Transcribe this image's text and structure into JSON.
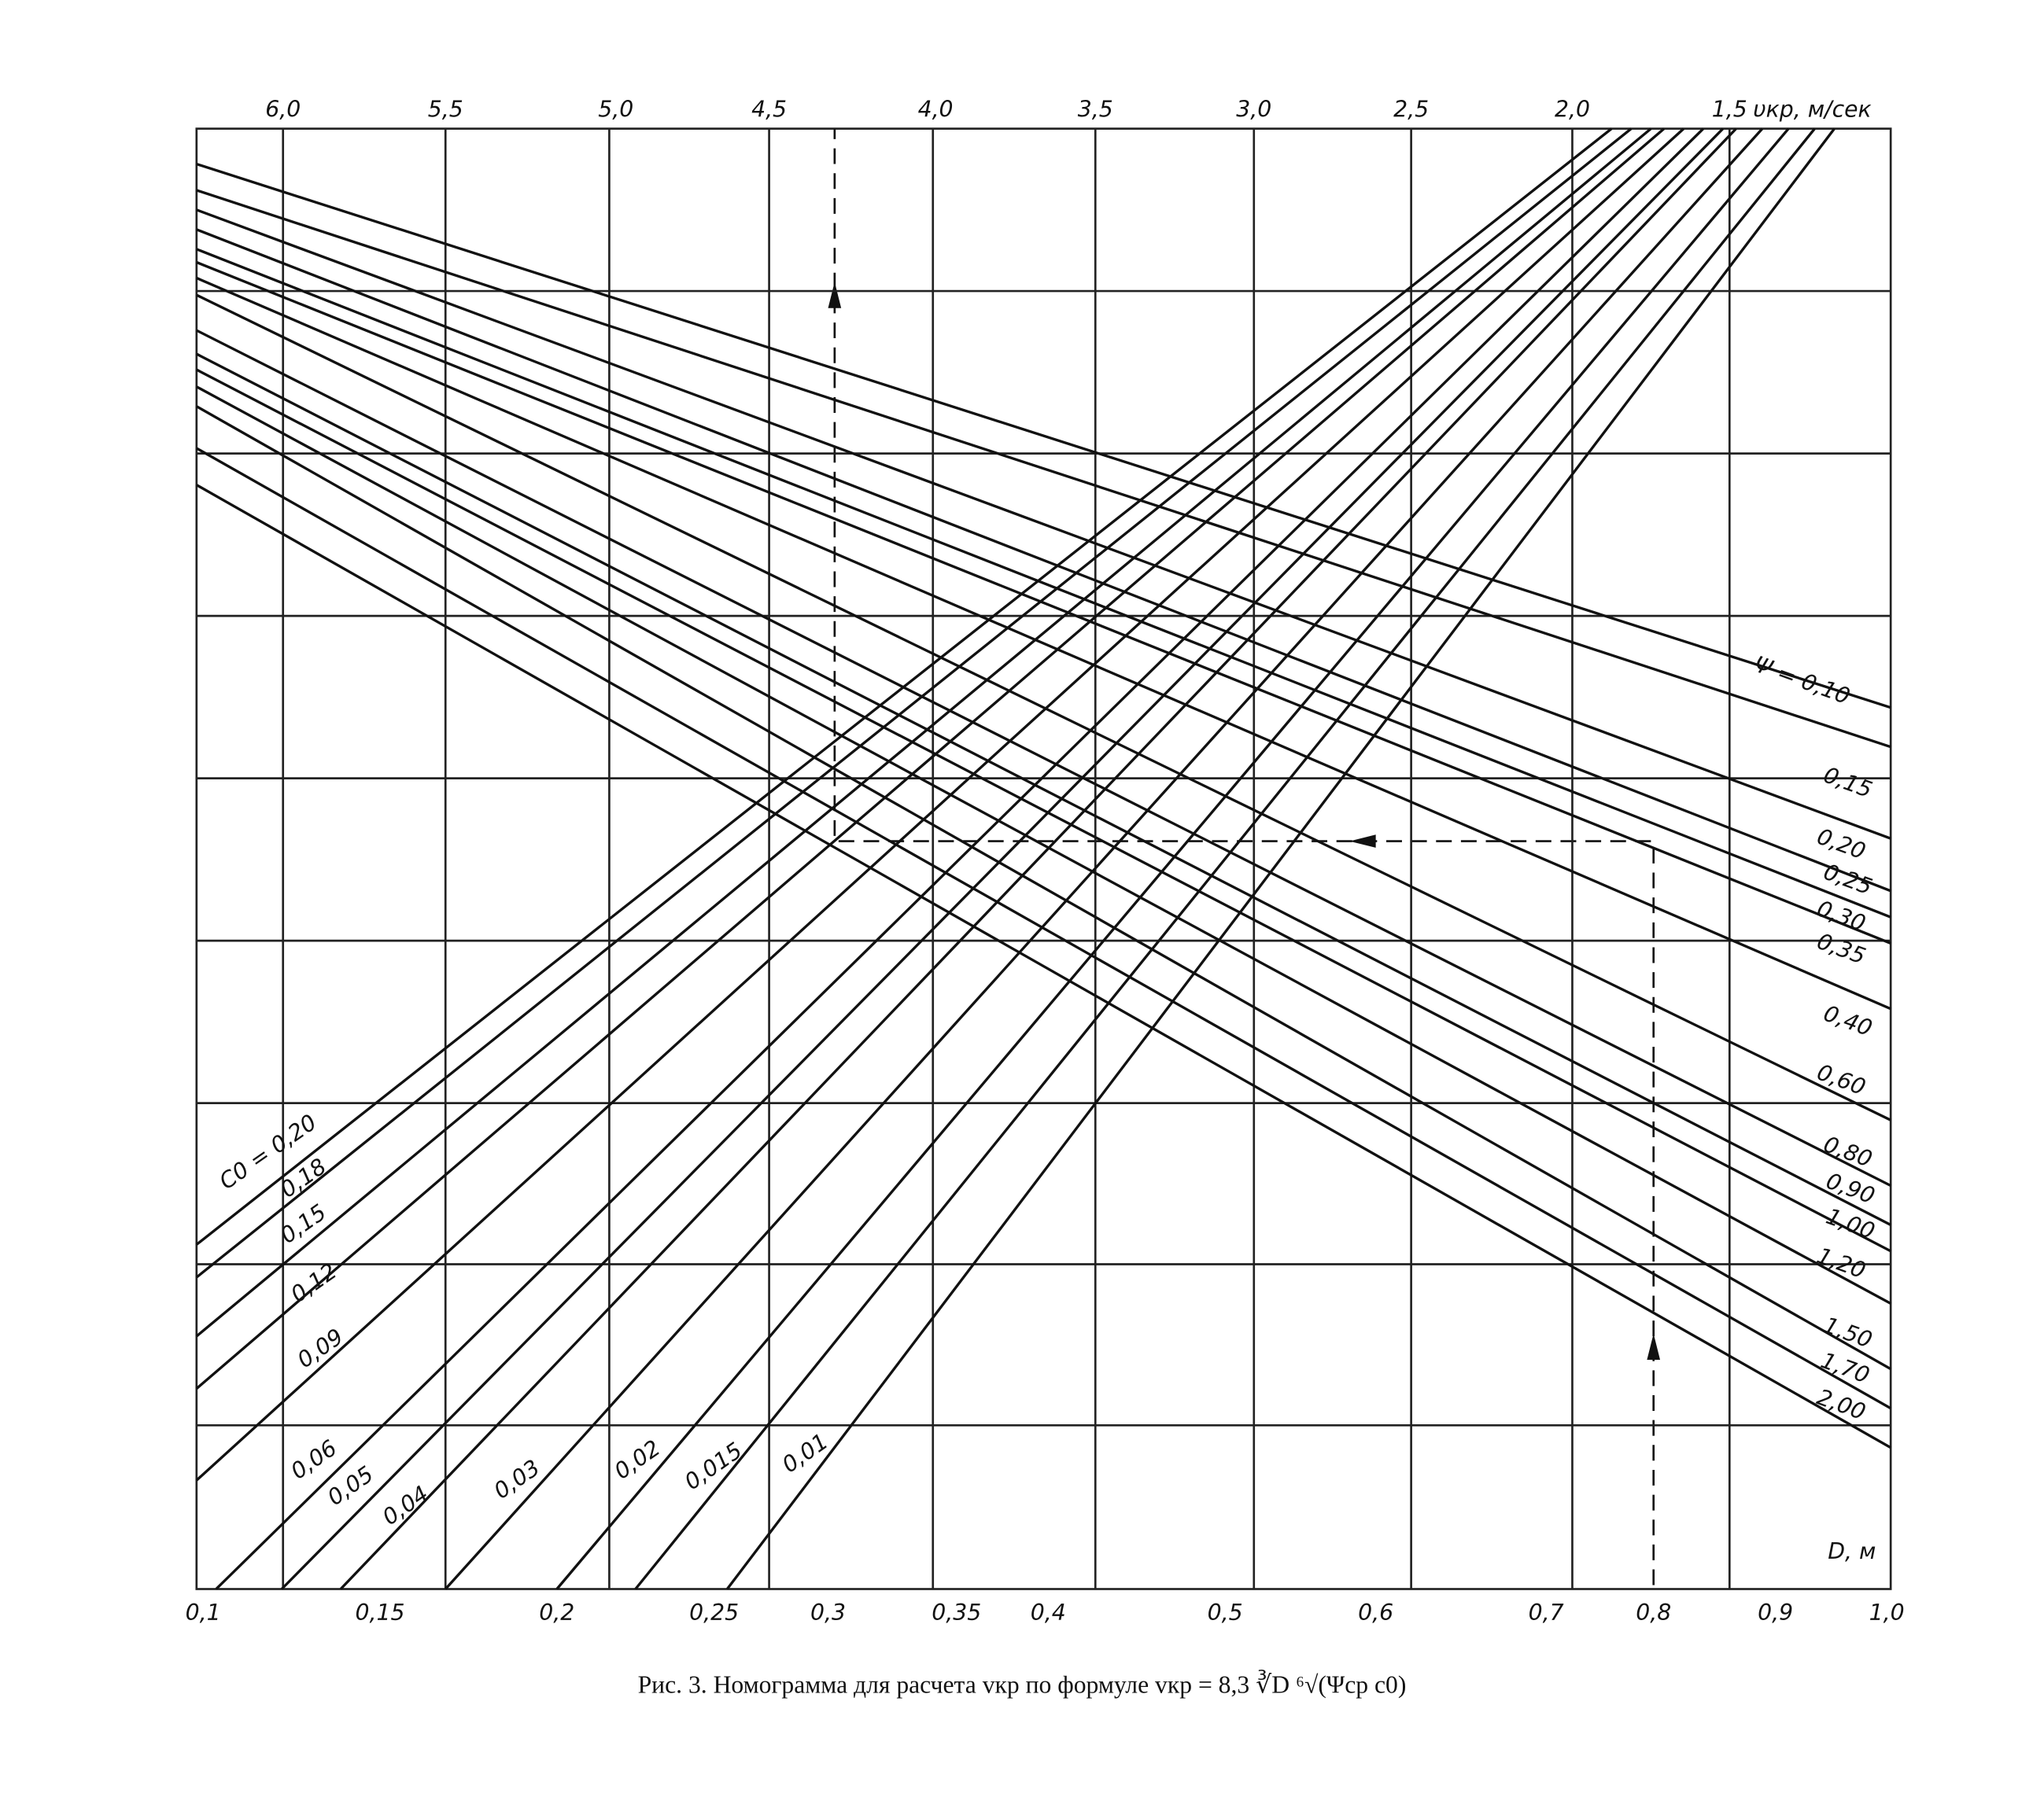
{
  "top_axis": {
    "labels": [
      "6,0",
      "5,5",
      "5,0",
      "4,5",
      "4,0",
      "3,5",
      "3,0",
      "2,5",
      "2,0",
      "1,5"
    ],
    "title": "υкр, м/сек"
  },
  "bottom_axis": {
    "labels": [
      "0,1",
      "0,15",
      "0,2",
      "0,25",
      "0,3",
      "0,35",
      "0,4",
      "0,5",
      "0,6",
      "0,7",
      "0,8",
      "0,9",
      "1,0"
    ],
    "title": "D, м"
  },
  "psi_labels": [
    "Ψ = 0,10",
    "0,15",
    "0,20",
    "0,25",
    "0,30",
    "0,35",
    "0,40",
    "0,60",
    "0,80",
    "0,90",
    "1,00",
    "1,20",
    "1,50",
    "1,70",
    "2,00"
  ],
  "c0_labels": [
    "C0 = 0,20",
    "0,18",
    "0,15",
    "0,12",
    "0,09",
    "0,06",
    "0,05",
    "0,04",
    "0,03",
    "0,02",
    "0,015",
    "0,01"
  ],
  "caption": {
    "prefix": "Рис. 3. Номограмма для расчета",
    "symbol": "vкр",
    "middle": "по формуле",
    "formula": "vкр = 8,3 ∛D ⁶√(Ψср c0)"
  }
}
